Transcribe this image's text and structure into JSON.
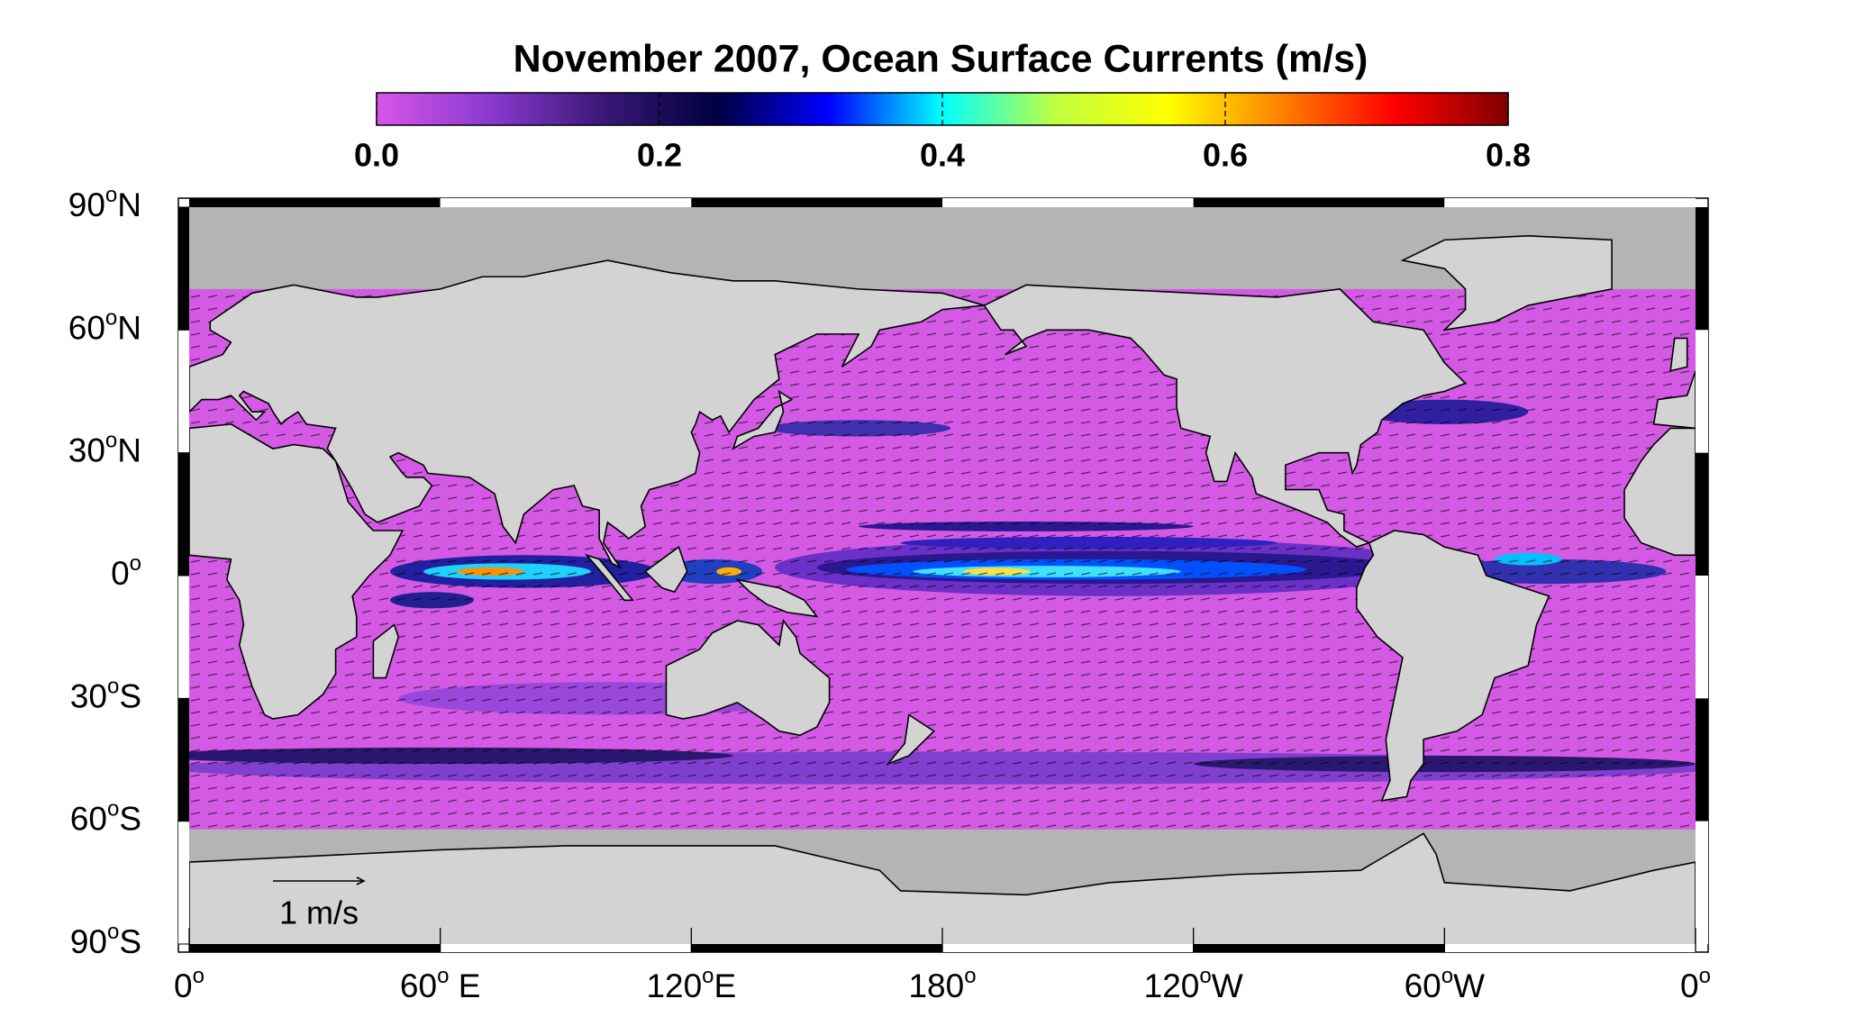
{
  "title": "November 2007, Ocean Surface Currents  (m/s)",
  "colorbar": {
    "lim": [
      0,
      0.8
    ],
    "colormap": [
      "#d755e8",
      "#8a3ad0",
      "#3a1878",
      "#000040",
      "#0000ff",
      "#00ffff",
      "#c0ff40",
      "#ffff00",
      "#ff8000",
      "#ff0000",
      "#800000"
    ],
    "ticks": [
      {
        "value": 0,
        "label": "0.0"
      },
      {
        "value": 0.2,
        "label": "0.2"
      },
      {
        "value": 0.4,
        "label": "0.4"
      },
      {
        "value": 0.6,
        "label": "0.6"
      },
      {
        "value": 0.8,
        "label": "0.8"
      }
    ]
  },
  "map": {
    "lon_lim": [
      0,
      360
    ],
    "lat_lim": [
      -90,
      90
    ],
    "lat_ticks": [
      {
        "value": 90,
        "label": "90",
        "sup": "o",
        "suffix": "N"
      },
      {
        "value": 60,
        "label": "60",
        "sup": "o",
        "suffix": "N"
      },
      {
        "value": 30,
        "label": "30",
        "sup": "o",
        "suffix": "N"
      },
      {
        "value": 0,
        "label": "0",
        "sup": "o"
      },
      {
        "value": -30,
        "label": "30",
        "sup": "o",
        "suffix": "S"
      },
      {
        "value": -60,
        "label": "60",
        "sup": "o",
        "suffix": "S"
      },
      {
        "value": -90,
        "label": "90",
        "sup": "o",
        "suffix": "S"
      }
    ],
    "lon_ticks": [
      {
        "value": 0,
        "label": "0",
        "sup": "o"
      },
      {
        "value": 60,
        "label": "60",
        "sup": "o",
        "suffix": " E"
      },
      {
        "value": 120,
        "label": "120",
        "sup": "o",
        "suffix": "E"
      },
      {
        "value": 180,
        "label": "180",
        "sup": "o"
      },
      {
        "value": 240,
        "label": "120",
        "sup": "o",
        "suffix": "W"
      },
      {
        "value": 300,
        "label": "60",
        "sup": "o",
        "suffix": "W"
      },
      {
        "value": 360,
        "label": "0",
        "sup": "o"
      }
    ],
    "scale_label": "1 m/s"
  }
}
